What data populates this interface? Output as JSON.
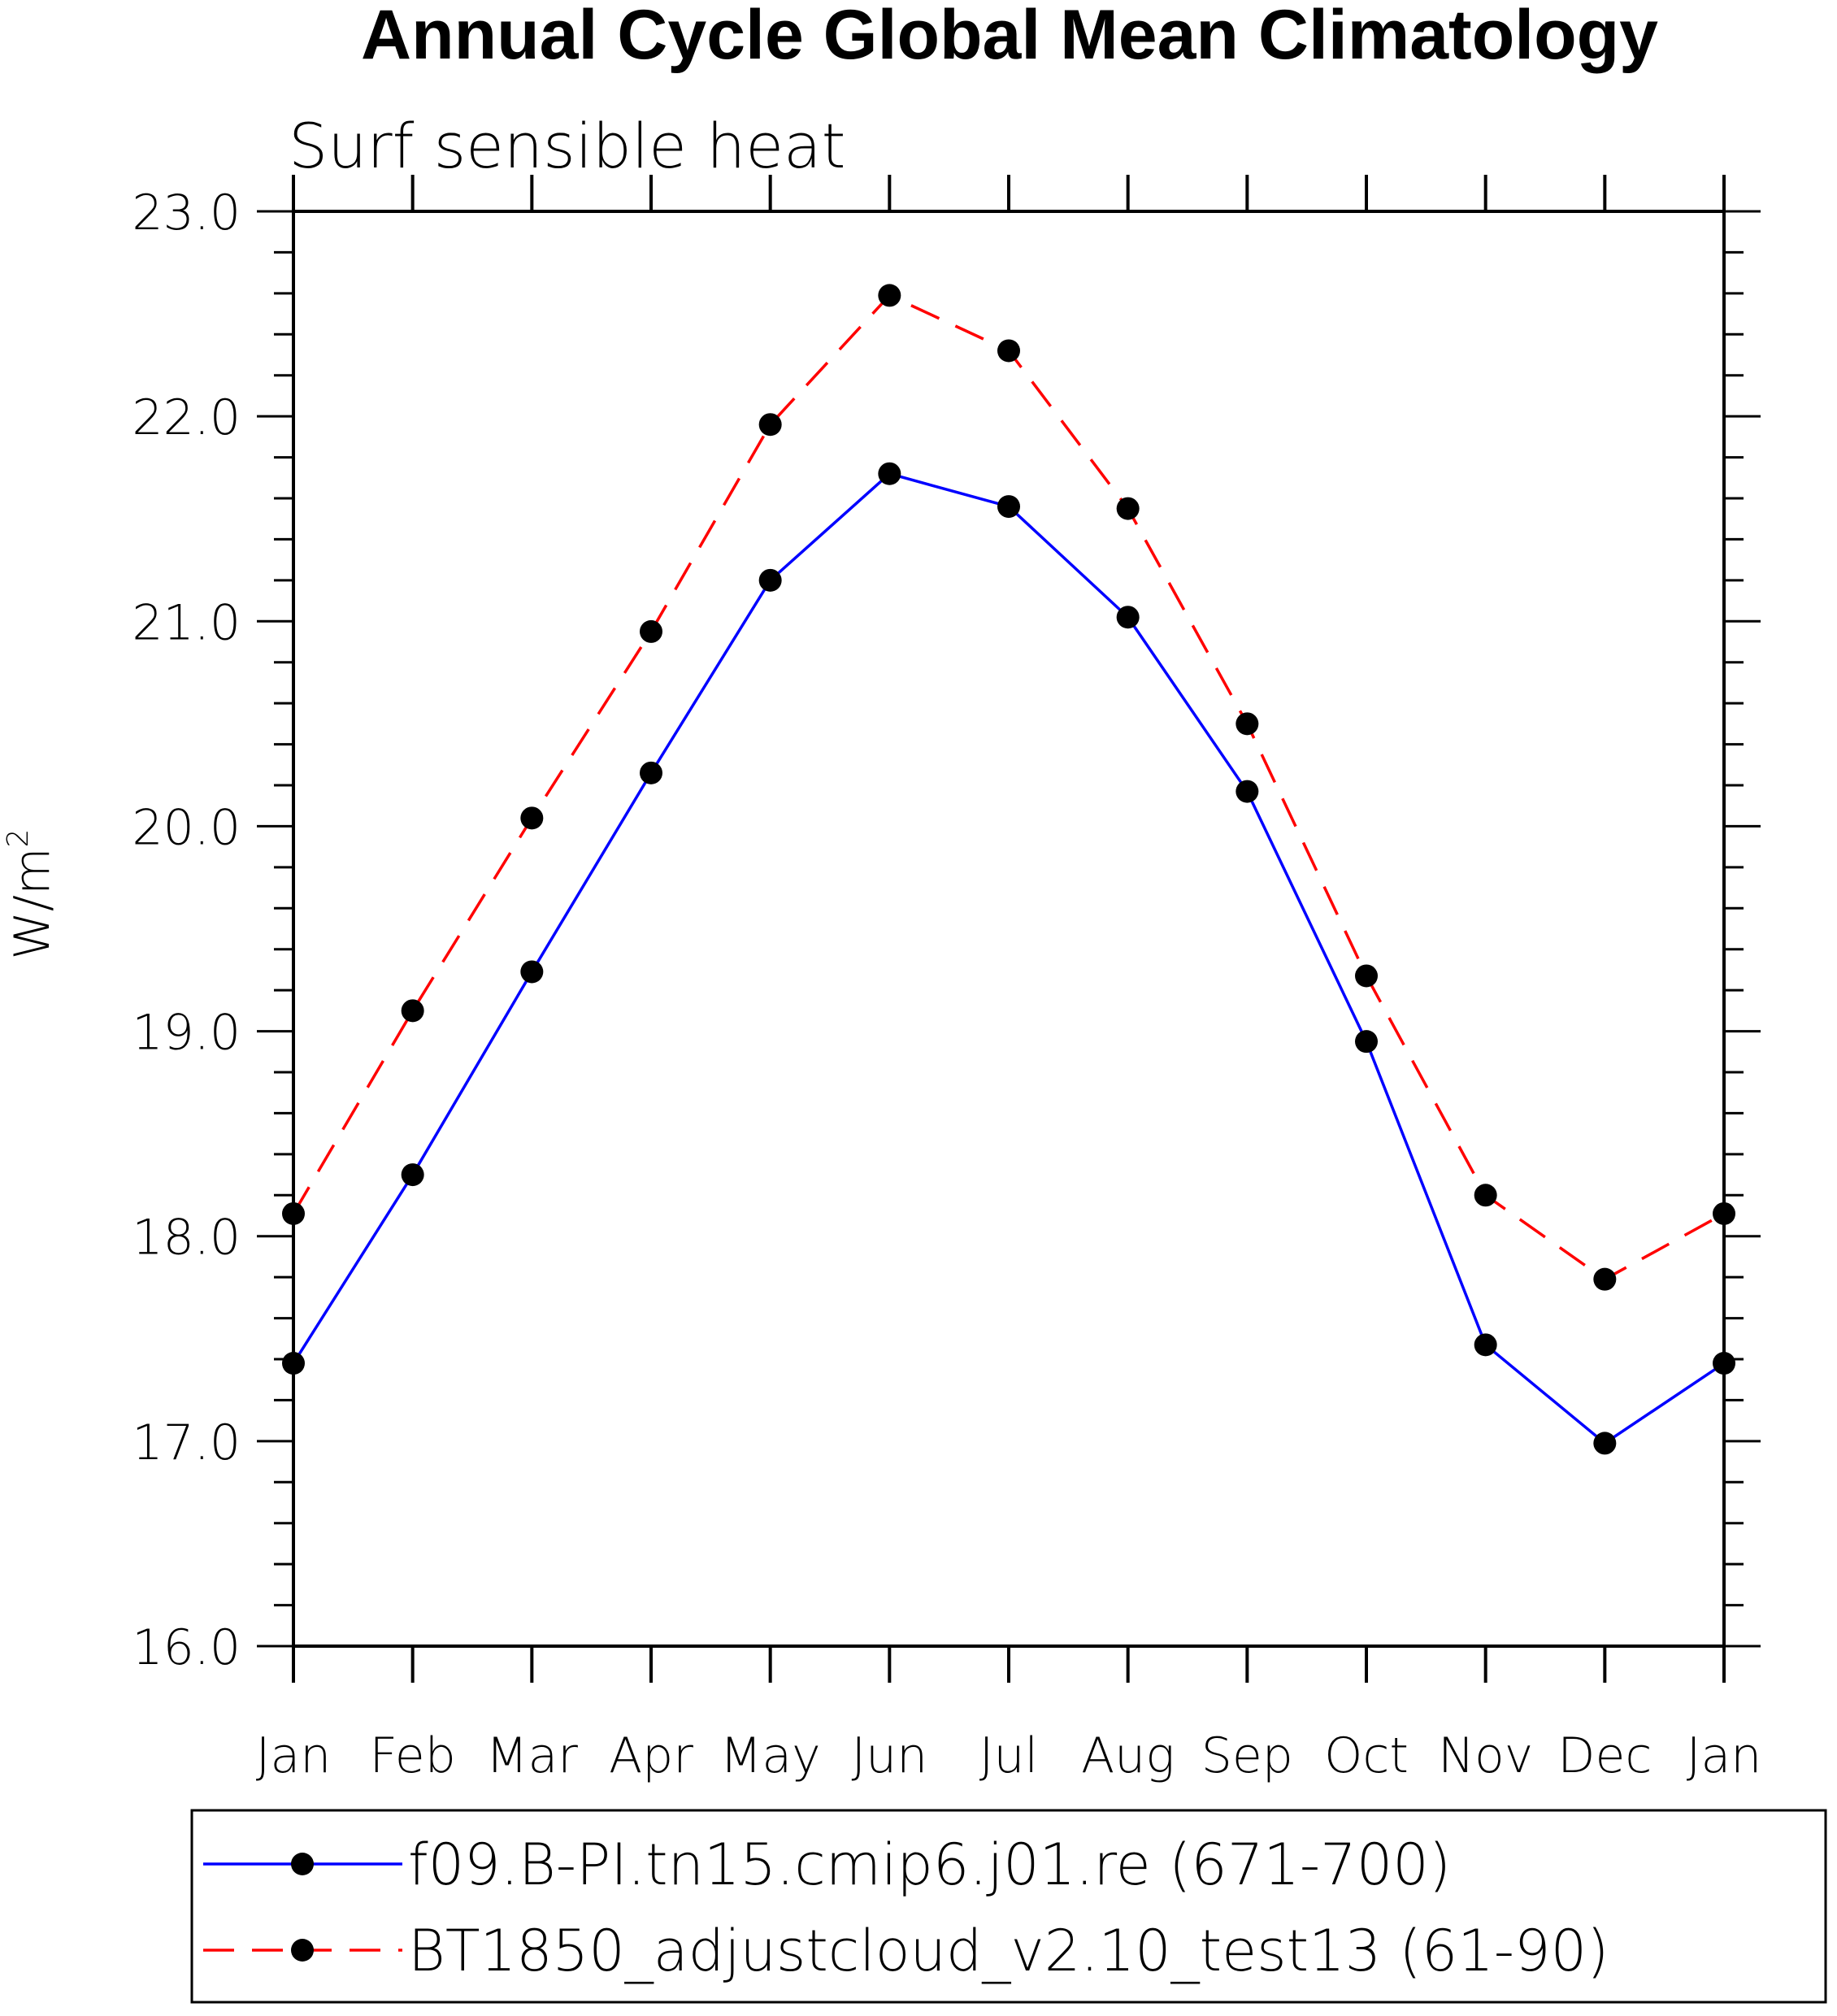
{
  "chart_data": {
    "type": "line",
    "title": "Annual Cycle Global Mean Climatology",
    "subtitle": "Surf sensible heat",
    "xlabel": "",
    "ylabel": "W/m",
    "ylabel_sup": "2",
    "categories": [
      "Jan",
      "Feb",
      "Mar",
      "Apr",
      "May",
      "Jun",
      "Jul",
      "Aug",
      "Sep",
      "Oct",
      "Nov",
      "Dec",
      "Jan"
    ],
    "ylim": [
      16.0,
      23.0
    ],
    "yticks": [
      "16.0",
      "17.0",
      "18.0",
      "19.0",
      "20.0",
      "21.0",
      "22.0",
      "23.0"
    ],
    "grid": false,
    "legend_position": "bottom",
    "series": [
      {
        "name": "f09.B-PI.tn15.cmip6.j01.re (671-700)",
        "color": "#0000ff",
        "dash": "solid",
        "values": [
          17.38,
          18.3,
          19.29,
          20.26,
          21.2,
          21.72,
          21.56,
          21.02,
          20.17,
          18.95,
          17.47,
          16.99,
          17.38
        ]
      },
      {
        "name": "BT1850_adjustcloud_v2.10_test13 (61-90)",
        "color": "#ff0000",
        "dash": "dashed",
        "values": [
          18.11,
          19.1,
          20.04,
          20.95,
          21.96,
          22.59,
          22.32,
          21.55,
          20.5,
          19.27,
          18.2,
          17.79,
          18.11
        ]
      }
    ]
  }
}
